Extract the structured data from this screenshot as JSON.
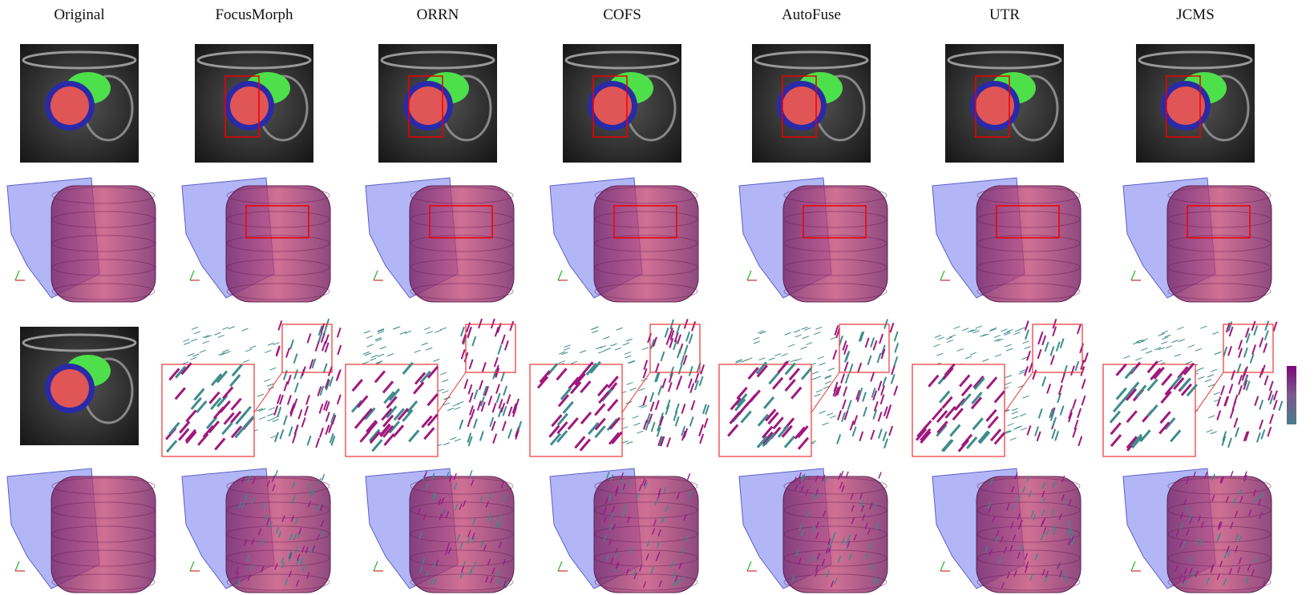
{
  "columns": [
    "Original",
    "FocusMorph",
    "ORRN",
    "COFS",
    "AutoFuse",
    "UTR",
    "JCMS"
  ]
}
